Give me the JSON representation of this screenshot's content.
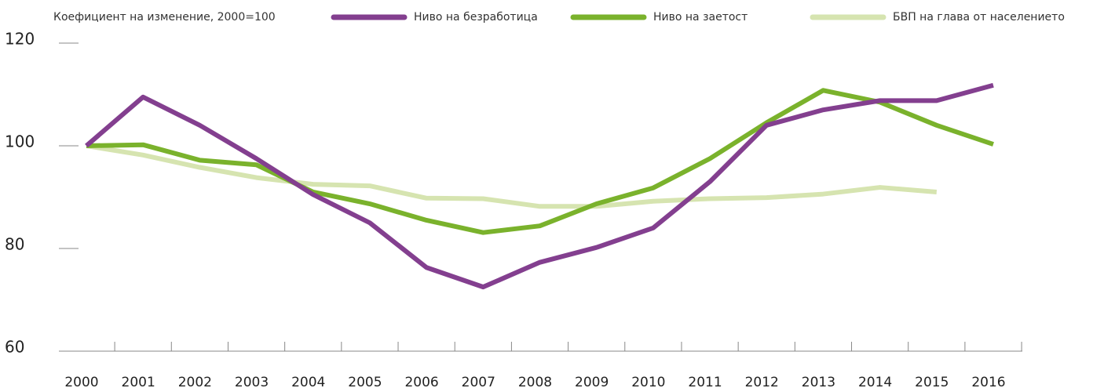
{
  "chart_data": {
    "type": "line",
    "title": "Коефициент на изменение, 2000=100",
    "categories": [
      "2000",
      "2001",
      "2002",
      "2003",
      "2004",
      "2005",
      "2006",
      "2007",
      "2008",
      "2009",
      "2010",
      "2011",
      "2012",
      "2013",
      "2014",
      "2015",
      "2016"
    ],
    "series": [
      {
        "name": "Ниво на безработица",
        "color": "#833f8f",
        "values": [
          100,
          109.5,
          104,
          97.5,
          90.5,
          85,
          76.3,
          72.5,
          77.3,
          80.2,
          84,
          93,
          104,
          107,
          108.8,
          108.8,
          111.8
        ]
      },
      {
        "name": "Ниво на заетост",
        "color": "#7ab22c",
        "values": [
          100,
          100.2,
          97.2,
          96.3,
          91,
          88.7,
          85.5,
          83.1,
          84.4,
          88.7,
          91.8,
          97.5,
          104.5,
          110.8,
          108.5,
          104,
          100.3
        ]
      },
      {
        "name": "БВП на глава от населението",
        "color": "#d6e4b0",
        "values": [
          100,
          98.2,
          95.8,
          93.8,
          92.5,
          92.2,
          89.8,
          89.7,
          88.2,
          88.2,
          89.2,
          89.7,
          89.9,
          90.6,
          91.9,
          91,
          null
        ]
      }
    ],
    "ylim": [
      60,
      120
    ],
    "yticks": [
      60,
      80,
      100,
      120
    ],
    "grid": false
  }
}
